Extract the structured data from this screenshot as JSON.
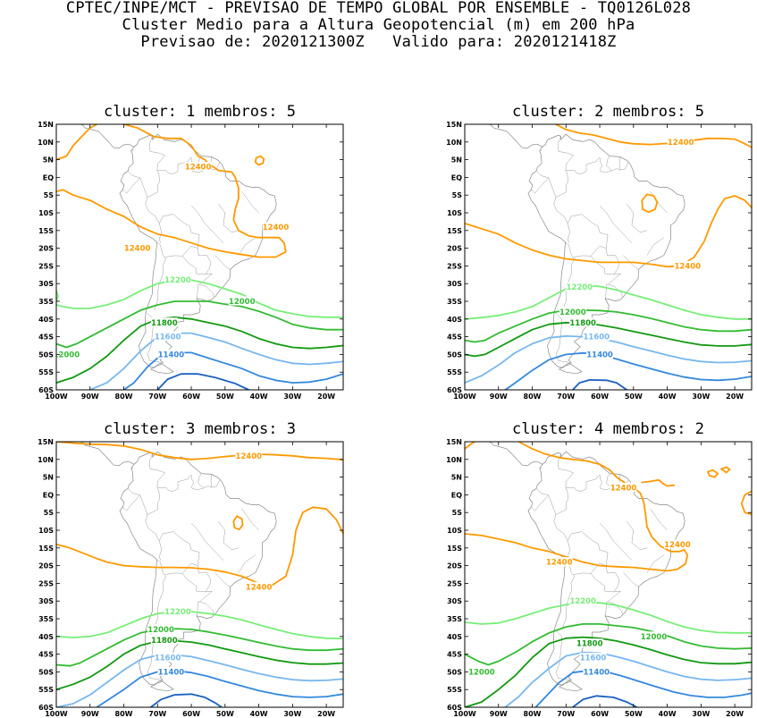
{
  "header": {
    "line1": "CPTEC/INPE/MCT - PREVISAO DE TEMPO GLOBAL POR ENSEMBLE - TQ0126L028",
    "line2": "Cluster Medio para a Altura Geopotencial (m) em 200 hPa",
    "line3": "Previsao de: 2020121300Z   Valido para: 2020121418Z"
  },
  "axes": {
    "lat_labels": [
      "15N",
      "10N",
      "5N",
      "EQ",
      "5S",
      "10S",
      "15S",
      "20S",
      "25S",
      "30S",
      "35S",
      "40S",
      "45S",
      "50S",
      "55S",
      "60S"
    ],
    "lon_labels": [
      "100W",
      "90W",
      "80W",
      "70W",
      "60W",
      "50W",
      "40W",
      "30W",
      "20W"
    ]
  },
  "colors": {
    "c12400": "#ff9900",
    "c12200": "#77ee77",
    "c12000": "#33bb33",
    "c11800": "#119911",
    "c11600": "#77b7ee",
    "c11400": "#3388dd",
    "c11200": "#1a60c0",
    "coast": "#888888"
  },
  "panels": [
    {
      "title": "cluster: 1  membros: 5",
      "labels": [
        {
          "text": "12400",
          "color": "c12400",
          "lon": -58,
          "lat": 3
        },
        {
          "text": "12400",
          "color": "c12400",
          "lon": -35,
          "lat": -14
        },
        {
          "text": "12400",
          "color": "c12400",
          "lon": -76,
          "lat": -20
        },
        {
          "text": "12200",
          "color": "c12200",
          "lon": -64,
          "lat": -29
        },
        {
          "text": "12000",
          "color": "c12000",
          "lon": -45,
          "lat": -35
        },
        {
          "text": "11800",
          "color": "c11800",
          "lon": -68,
          "lat": -41
        },
        {
          "text": "11600",
          "color": "c11600",
          "lon": -67,
          "lat": -45
        },
        {
          "text": "11400",
          "color": "c11400",
          "lon": -66,
          "lat": -50
        },
        {
          "text": "12000",
          "color": "c12000",
          "lon": -97,
          "lat": -50
        }
      ]
    },
    {
      "title": "cluster: 2  membros: 5",
      "labels": [
        {
          "text": "12400",
          "color": "c12400",
          "lon": -36,
          "lat": 10
        },
        {
          "text": "12400",
          "color": "c12400",
          "lon": -34,
          "lat": -25
        },
        {
          "text": "12200",
          "color": "c12200",
          "lon": -66,
          "lat": -31
        },
        {
          "text": "12000",
          "color": "c12000",
          "lon": -68,
          "lat": -38
        },
        {
          "text": "11800",
          "color": "c11800",
          "lon": -65,
          "lat": -41
        },
        {
          "text": "11600",
          "color": "c11600",
          "lon": -61,
          "lat": -45
        },
        {
          "text": "11400",
          "color": "c11400",
          "lon": -60,
          "lat": -50
        }
      ]
    },
    {
      "title": "cluster: 3  membros: 3",
      "labels": [
        {
          "text": "12400",
          "color": "c12400",
          "lon": -43,
          "lat": 11
        },
        {
          "text": "12400",
          "color": "c12400",
          "lon": -40,
          "lat": -26
        },
        {
          "text": "12200",
          "color": "c12200",
          "lon": -64,
          "lat": -33
        },
        {
          "text": "12000",
          "color": "c12000",
          "lon": -69,
          "lat": -38
        },
        {
          "text": "11800",
          "color": "c11800",
          "lon": -68,
          "lat": -41
        },
        {
          "text": "11600",
          "color": "c11600",
          "lon": -67,
          "lat": -46
        },
        {
          "text": "11400",
          "color": "c11400",
          "lon": -66,
          "lat": -50
        }
      ]
    },
    {
      "title": "cluster: 4  membros: 2",
      "labels": [
        {
          "text": "12400",
          "color": "c12400",
          "lon": -53,
          "lat": 2
        },
        {
          "text": "12400",
          "color": "c12400",
          "lon": -37,
          "lat": -14
        },
        {
          "text": "12400",
          "color": "c12400",
          "lon": -72,
          "lat": -19
        },
        {
          "text": "12200",
          "color": "c12200",
          "lon": -65,
          "lat": -30
        },
        {
          "text": "12000",
          "color": "c12000",
          "lon": -44,
          "lat": -40
        },
        {
          "text": "11800",
          "color": "c11800",
          "lon": -63,
          "lat": -42
        },
        {
          "text": "11600",
          "color": "c11600",
          "lon": -62,
          "lat": -46
        },
        {
          "text": "11400",
          "color": "c11400",
          "lon": -61,
          "lat": -50
        },
        {
          "text": "12000",
          "color": "c12000",
          "lon": -95,
          "lat": -50
        }
      ]
    }
  ]
}
